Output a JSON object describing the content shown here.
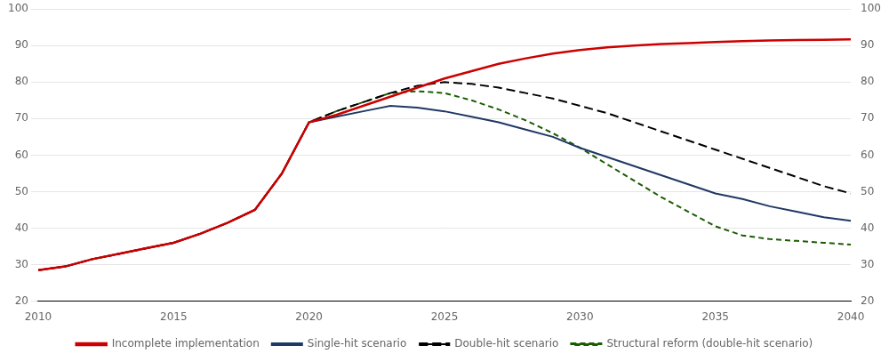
{
  "chart_data": {
    "type": "line",
    "x": [
      2010,
      2011,
      2012,
      2013,
      2014,
      2015,
      2016,
      2017,
      2018,
      2019,
      2020,
      2021,
      2022,
      2023,
      2024,
      2025,
      2026,
      2027,
      2028,
      2029,
      2030,
      2031,
      2032,
      2033,
      2034,
      2035,
      2036,
      2037,
      2038,
      2039,
      2040
    ],
    "series": [
      {
        "name": "Single-hit scenario",
        "color": "#1f3864",
        "line_style": "solid",
        "values": [
          28.5,
          29.5,
          31.5,
          33.0,
          34.5,
          36.0,
          38.5,
          41.5,
          45.0,
          55.0,
          69.0,
          70.5,
          72.0,
          73.5,
          73.0,
          72.0,
          70.5,
          69.0,
          67.0,
          65.0,
          62.0,
          59.5,
          57.0,
          54.5,
          52.0,
          49.5,
          48.0,
          46.0,
          44.5,
          43.0,
          42.0
        ]
      },
      {
        "name": "Double-hit scenario",
        "color": "#000000",
        "line_style": "dashed",
        "values": [
          28.5,
          29.5,
          31.5,
          33.0,
          34.5,
          36.0,
          38.5,
          41.5,
          45.0,
          55.0,
          69.0,
          72.0,
          74.5,
          77.0,
          79.0,
          80.0,
          79.5,
          78.5,
          77.0,
          75.5,
          73.5,
          71.5,
          69.0,
          66.5,
          64.0,
          61.5,
          59.0,
          56.5,
          54.0,
          51.5,
          49.5
        ]
      },
      {
        "name": "Incomplete implementation",
        "color": "#cc0000",
        "line_style": "solid",
        "values": [
          28.5,
          29.5,
          31.5,
          33.0,
          34.5,
          36.0,
          38.5,
          41.5,
          45.0,
          55.0,
          69.0,
          71.0,
          73.5,
          76.0,
          78.5,
          81.0,
          83.0,
          85.0,
          86.5,
          87.8,
          88.8,
          89.5,
          90.0,
          90.4,
          90.7,
          91.0,
          91.2,
          91.4,
          91.5,
          91.6,
          91.7
        ]
      },
      {
        "name": "Structural reform (double-hit scenario)",
        "color": "#1a5c00",
        "line_style": "dashed",
        "values": [
          28.5,
          29.5,
          31.5,
          33.0,
          34.5,
          36.0,
          38.5,
          41.5,
          45.0,
          55.0,
          69.0,
          72.0,
          74.5,
          77.0,
          77.5,
          77.0,
          75.0,
          72.5,
          69.5,
          66.0,
          62.0,
          57.5,
          53.0,
          48.5,
          44.5,
          40.5,
          38.0,
          37.0,
          36.5,
          36.0,
          35.5
        ]
      }
    ],
    "xlim": [
      2010,
      2040
    ],
    "xticks": [
      2010,
      2015,
      2020,
      2025,
      2030,
      2035,
      2040
    ],
    "ylim": [
      20,
      100
    ],
    "yticks": [
      20,
      30,
      40,
      50,
      60,
      70,
      80,
      90,
      100
    ],
    "y2lim": [
      20,
      100
    ],
    "y2ticks": [
      20,
      30,
      40,
      50,
      60,
      70,
      80,
      90,
      100
    ],
    "grid": "y",
    "legend": "bottom"
  }
}
